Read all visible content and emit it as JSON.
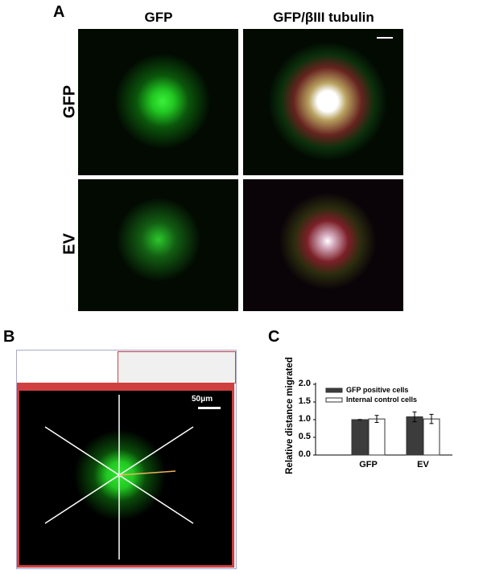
{
  "panels": {
    "A": {
      "label": "A",
      "column_titles": [
        "GFP",
        "GFP/βIII tubulin"
      ],
      "row_labels": [
        "GFP",
        "EV"
      ]
    },
    "B": {
      "label": "B",
      "scale_bar_label": "50μm"
    },
    "C": {
      "label": "C"
    }
  },
  "colors": {
    "gfp_green": "#22e022",
    "tubulin_red": "#e03030",
    "bar_dark": "#3c3c3c",
    "bar_light": "#ffffff"
  },
  "chart_data": {
    "type": "bar",
    "categories": [
      "GFP",
      "EV"
    ],
    "series": [
      {
        "name": "GFP positive cells",
        "values": [
          1.0,
          1.08
        ],
        "errors": [
          0.005,
          0.14
        ],
        "color": "#3c3c3c"
      },
      {
        "name": "Internal control cells",
        "values": [
          1.02,
          1.02
        ],
        "errors": [
          0.1,
          0.13
        ],
        "color": "#ffffff"
      }
    ],
    "ylabel": "Relative distance migrated",
    "xlabel": "",
    "ylim": [
      0,
      2.0
    ],
    "yticks": [
      "0.0",
      "0.5",
      "1.0",
      "1.5",
      "2.0"
    ],
    "legend": "top-left",
    "grid": false
  }
}
